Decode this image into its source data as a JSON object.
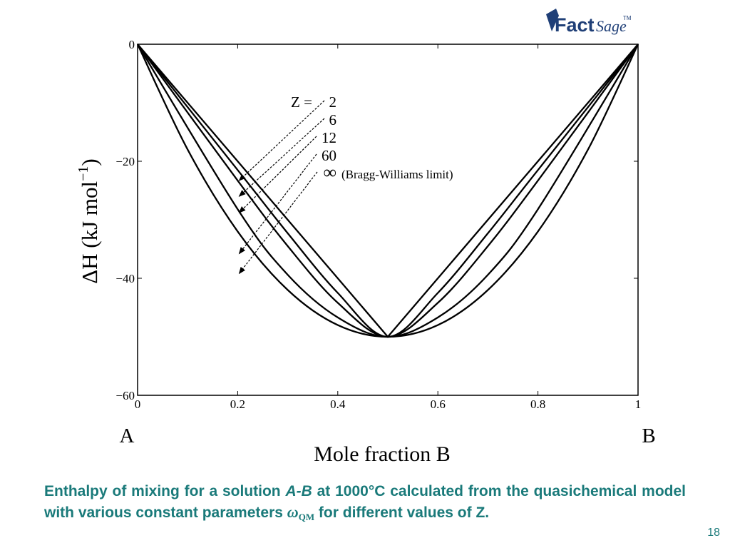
{
  "logo": {
    "text_a": "Fact",
    "text_b": "Sage",
    "tm": "TM",
    "color": "#1f3f77"
  },
  "chart_data": {
    "type": "line",
    "ylabel": "ΔH (kJ mol",
    "ylabel_sup": "−1",
    "ylabel_close": ")",
    "xlabel": "Mole fraction B",
    "x_end_labels": {
      "left": "A",
      "right": "B"
    },
    "xlim": [
      0,
      1
    ],
    "ylim": [
      -60,
      0
    ],
    "xticks": [
      0,
      0.2,
      0.4,
      0.6,
      0.8,
      1
    ],
    "xtick_labels": [
      "0",
      "0.2",
      "0.4",
      "0.6",
      "0.8",
      "1"
    ],
    "yticks": [
      0,
      -20,
      -40,
      -60
    ],
    "ytick_labels": [
      "0",
      "−20",
      "−40",
      "−60"
    ],
    "grid": false,
    "series": [
      {
        "name": "2",
        "x": [
          0,
          0.5,
          1
        ],
        "y": [
          0,
          -50,
          0
        ]
      },
      {
        "name": "6",
        "x": [
          0,
          0.2,
          0.3,
          0.4,
          0.5,
          0.6,
          0.7,
          0.8,
          1
        ],
        "y": [
          0,
          -21.5,
          -32.3,
          -42.5,
          -50,
          -42.5,
          -32.3,
          -21.5,
          0
        ]
      },
      {
        "name": "12",
        "x": [
          0,
          0.2,
          0.3,
          0.4,
          0.5,
          0.6,
          0.7,
          0.8,
          1
        ],
        "y": [
          0,
          -23.3,
          -34.5,
          -44.2,
          -50,
          -44.2,
          -34.5,
          -23.3,
          0
        ]
      },
      {
        "name": "60",
        "x": [
          0,
          0.2,
          0.3,
          0.4,
          0.5,
          0.6,
          0.7,
          0.8,
          1
        ],
        "y": [
          0,
          -28.2,
          -39.4,
          -46.7,
          -50,
          -46.7,
          -39.4,
          -28.2,
          0
        ]
      },
      {
        "name": "∞",
        "x": [
          0,
          0.1,
          0.2,
          0.3,
          0.4,
          0.5,
          0.6,
          0.7,
          0.8,
          0.9,
          1
        ],
        "y": [
          0,
          -18,
          -32,
          -42,
          -48,
          -50,
          -48,
          -42,
          -32,
          -18,
          0
        ]
      }
    ],
    "annotations": {
      "prefix": "Z = ",
      "labels": [
        "2",
        "6",
        "12",
        "60",
        "∞"
      ],
      "note": "(Bragg-Williams limit)"
    }
  },
  "caption": {
    "part1": "Enthalpy of mixing for a solution ",
    "ab": "A-B",
    "part2": " at 1000°C calculated from the quasichemical model with various constant parameters ",
    "omega": "ω",
    "sub": "QM",
    "part3": " for different values of Z."
  },
  "page_number": "18"
}
